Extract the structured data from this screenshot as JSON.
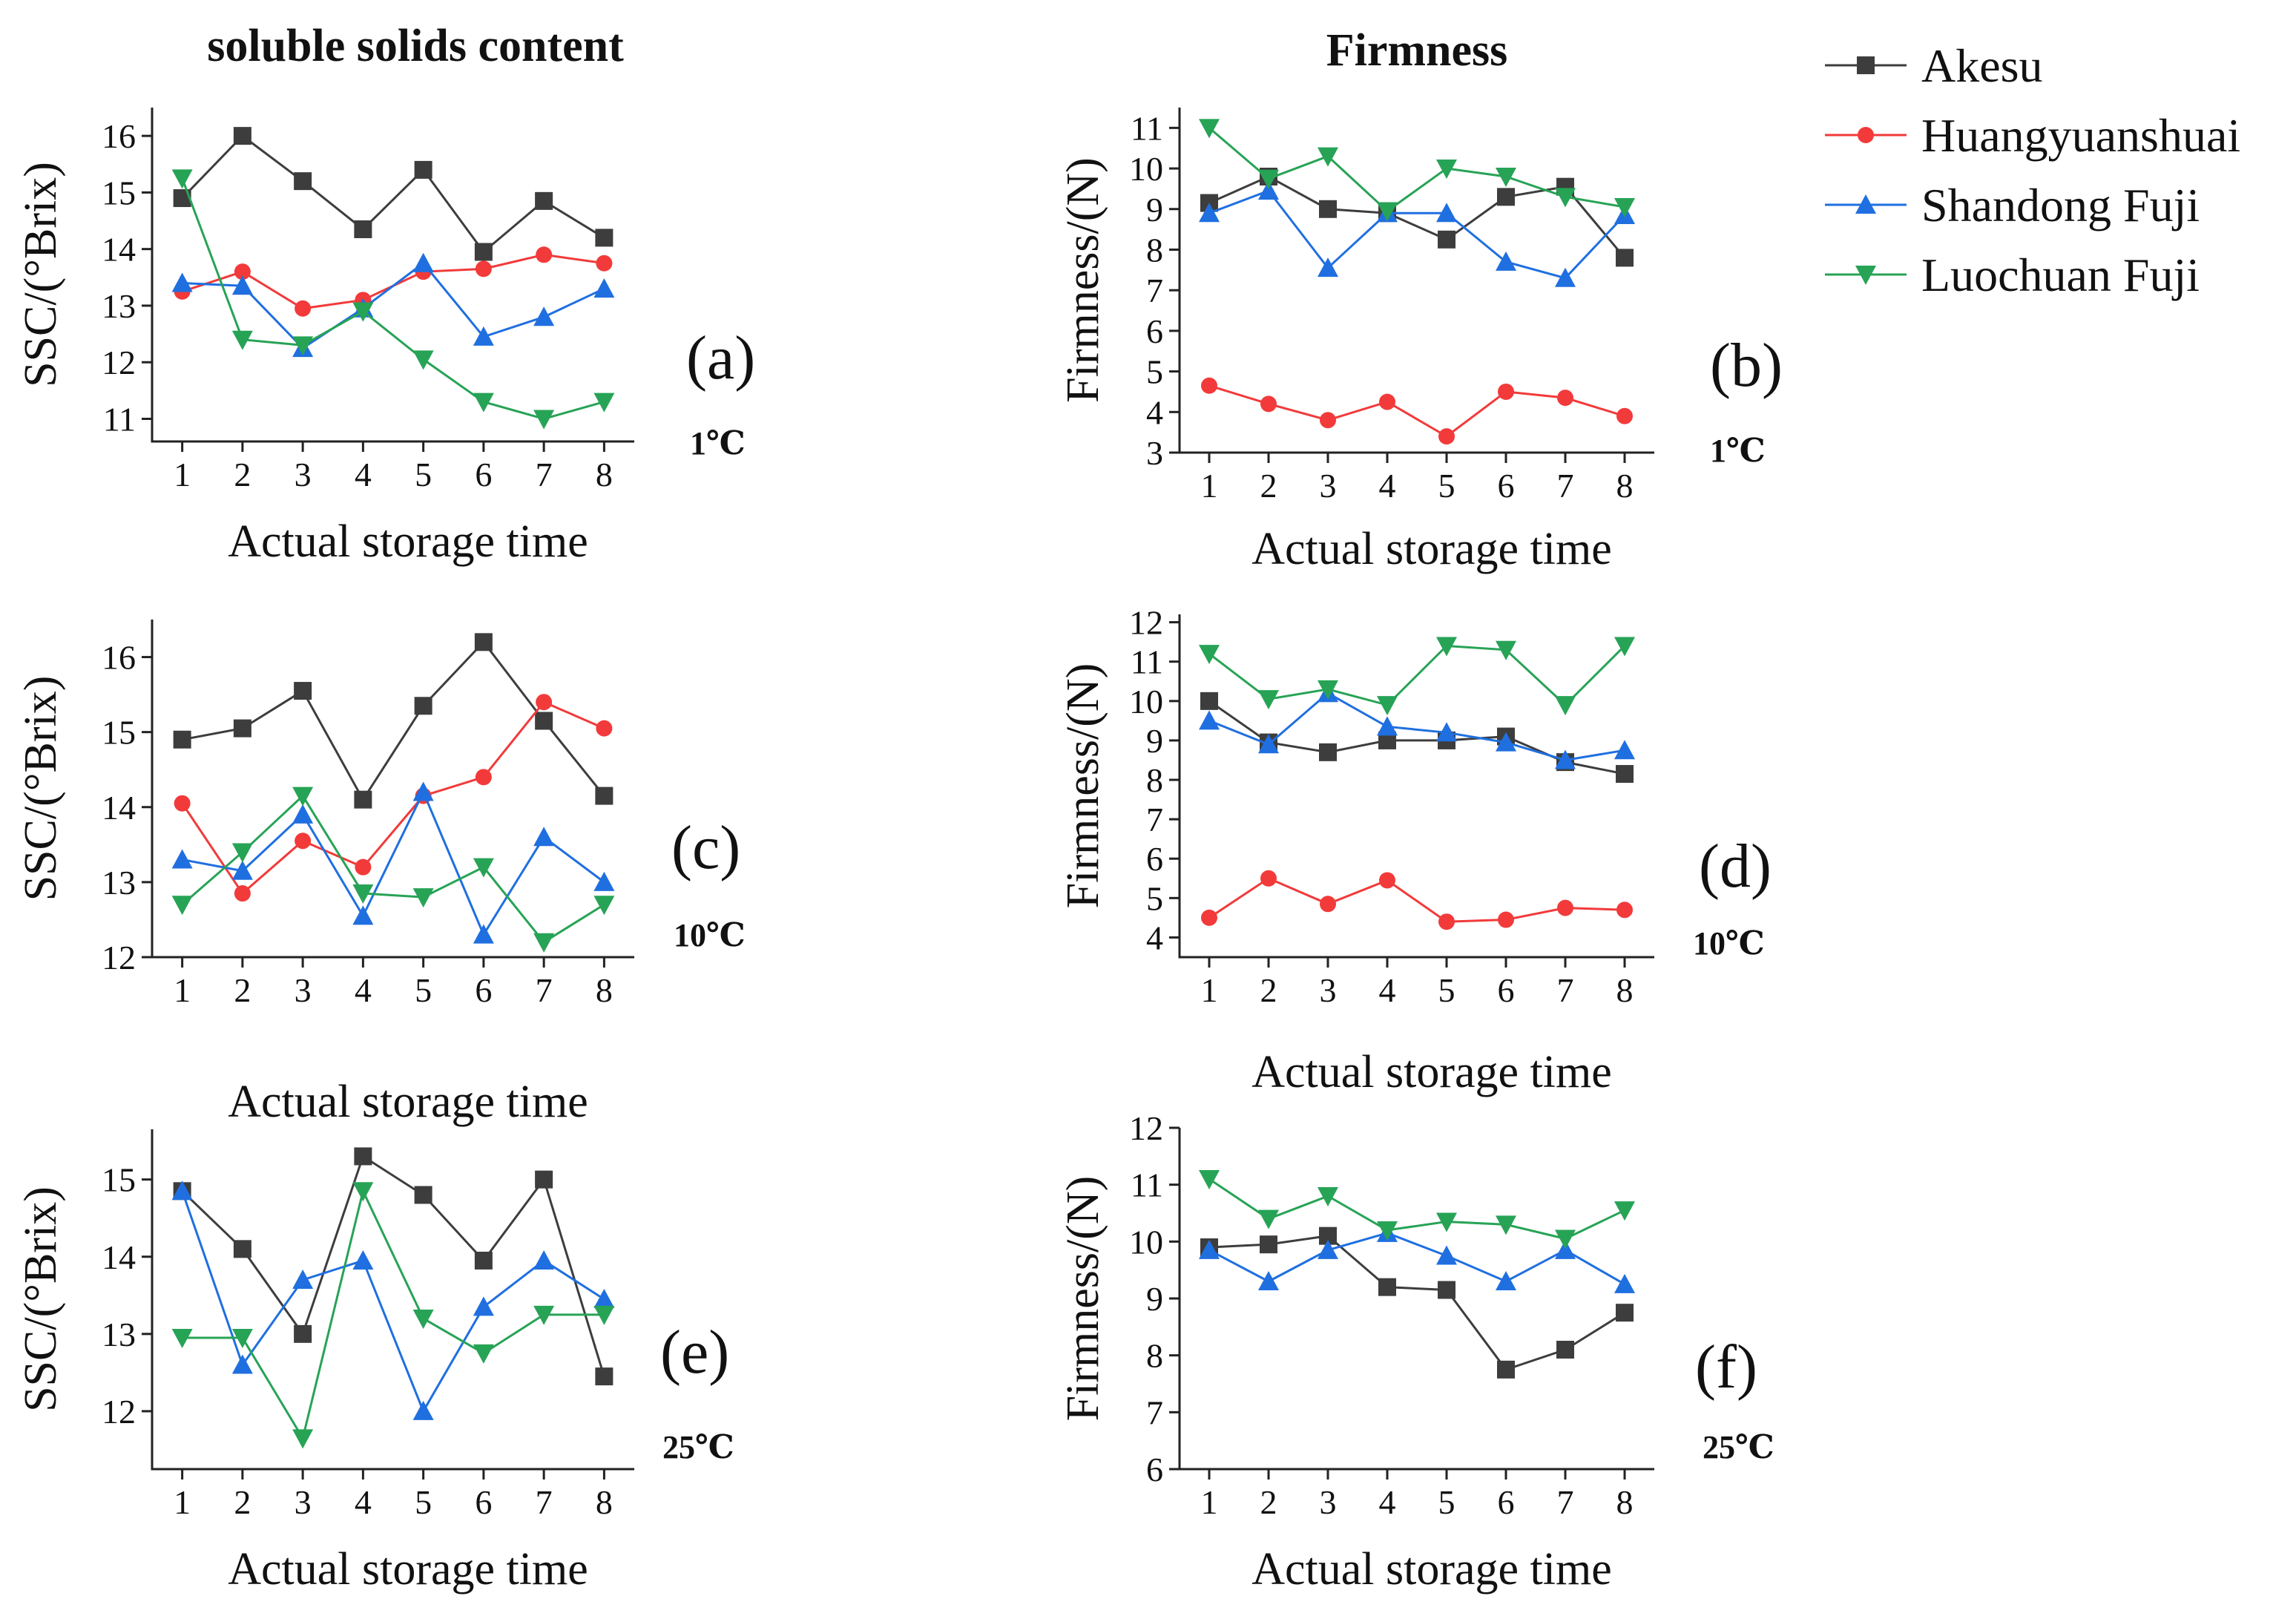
{
  "column_titles": {
    "ssc": "soluble solids content",
    "firmness": "Firmness"
  },
  "colors": {
    "Akesu": "#3d3d3d",
    "Huangyuanshuai": "#f23a3a",
    "Shandong Fuji": "#1f6fe0",
    "Luochuan Fuji": "#27a356"
  },
  "legend": [
    {
      "name": "Akesu",
      "marker": "square"
    },
    {
      "name": "Huangyuanshuai",
      "marker": "circle"
    },
    {
      "name": "Shandong Fuji",
      "marker": "triangle-up"
    },
    {
      "name": "Luochuan Fuji",
      "marker": "triangle-down"
    }
  ],
  "chart_data": [
    {
      "id": "a",
      "type": "line",
      "panel_label": "(a)",
      "temperature": "1℃",
      "ylabel": "SSC/(°Brix)",
      "xlabel": "Actual storage time",
      "x": [
        1,
        2,
        3,
        4,
        5,
        6,
        7,
        8
      ],
      "ylim": [
        10.6,
        16.5
      ],
      "yticks": [
        11,
        12,
        13,
        14,
        15,
        16
      ],
      "series": [
        {
          "name": "Akesu",
          "values": [
            14.9,
            16.0,
            15.2,
            14.35,
            15.4,
            13.95,
            14.85,
            14.2
          ]
        },
        {
          "name": "Huangyuanshuai",
          "values": [
            13.25,
            13.6,
            12.95,
            13.1,
            13.6,
            13.65,
            13.9,
            13.75
          ]
        },
        {
          "name": "Shandong Fuji",
          "values": [
            13.4,
            13.35,
            12.25,
            12.95,
            13.75,
            12.45,
            12.8,
            13.3
          ]
        },
        {
          "name": "Luochuan Fuji",
          "values": [
            15.25,
            12.4,
            12.3,
            12.9,
            12.05,
            11.3,
            11.0,
            11.3
          ]
        }
      ]
    },
    {
      "id": "b",
      "type": "line",
      "panel_label": "(b)",
      "temperature": "1℃",
      "ylabel": "Firmness/(N)",
      "xlabel": "Actual storage time",
      "x": [
        1,
        2,
        3,
        4,
        5,
        6,
        7,
        8
      ],
      "ylim": [
        3,
        11.5
      ],
      "yticks": [
        3,
        4,
        5,
        6,
        7,
        8,
        9,
        10,
        11
      ],
      "series": [
        {
          "name": "Akesu",
          "values": [
            9.15,
            9.8,
            9.0,
            8.9,
            8.25,
            9.3,
            9.55,
            7.8
          ]
        },
        {
          "name": "Huangyuanshuai",
          "values": [
            4.65,
            4.2,
            3.8,
            4.25,
            3.4,
            4.5,
            4.35,
            3.9
          ]
        },
        {
          "name": "Shandong Fuji",
          "values": [
            8.9,
            9.45,
            7.55,
            8.9,
            8.9,
            7.7,
            7.3,
            8.85
          ]
        },
        {
          "name": "Luochuan Fuji",
          "values": [
            11.0,
            9.75,
            10.3,
            8.95,
            10.0,
            9.8,
            9.3,
            9.05
          ]
        }
      ]
    },
    {
      "id": "c",
      "type": "line",
      "panel_label": "(c)",
      "temperature": "10℃",
      "ylabel": "SSC/(°Brix)",
      "xlabel": "Actual storage time",
      "x": [
        1,
        2,
        3,
        4,
        5,
        6,
        7,
        8
      ],
      "ylim": [
        12,
        16.5
      ],
      "yticks": [
        12,
        13,
        14,
        15,
        16
      ],
      "series": [
        {
          "name": "Akesu",
          "values": [
            14.9,
            15.05,
            15.55,
            14.1,
            15.35,
            16.2,
            15.15,
            14.15
          ]
        },
        {
          "name": "Huangyuanshuai",
          "values": [
            14.05,
            12.85,
            13.55,
            13.2,
            14.15,
            14.4,
            15.4,
            15.05
          ]
        },
        {
          "name": "Shandong Fuji",
          "values": [
            13.3,
            13.15,
            13.9,
            12.55,
            14.2,
            12.3,
            13.6,
            13.0
          ]
        },
        {
          "name": "Luochuan Fuji",
          "values": [
            12.7,
            13.4,
            14.15,
            12.85,
            12.8,
            13.2,
            12.2,
            12.7
          ]
        }
      ]
    },
    {
      "id": "d",
      "type": "line",
      "panel_label": "(d)",
      "temperature": "10℃",
      "ylabel": "Firmness/(N)",
      "xlabel": "Actual storage time",
      "x": [
        1,
        2,
        3,
        4,
        5,
        6,
        7,
        8
      ],
      "ylim": [
        3.5,
        12.2
      ],
      "yticks": [
        4,
        5,
        6,
        7,
        8,
        9,
        10,
        11,
        12
      ],
      "series": [
        {
          "name": "Akesu",
          "values": [
            10.0,
            8.95,
            8.7,
            9.0,
            9.0,
            9.1,
            8.45,
            8.15
          ]
        },
        {
          "name": "Huangyuanshuai",
          "values": [
            4.5,
            5.5,
            4.85,
            5.45,
            4.4,
            4.45,
            4.75,
            4.7
          ]
        },
        {
          "name": "Shandong Fuji",
          "values": [
            9.5,
            8.9,
            10.2,
            9.35,
            9.2,
            8.95,
            8.5,
            8.75
          ]
        },
        {
          "name": "Luochuan Fuji",
          "values": [
            11.2,
            10.05,
            10.3,
            9.9,
            11.4,
            11.3,
            9.9,
            11.4
          ]
        }
      ]
    },
    {
      "id": "e",
      "type": "line",
      "panel_label": "(e)",
      "temperature": "25℃",
      "ylabel": "SSC/(°Brix)",
      "xlabel": "Actual storage time",
      "x": [
        1,
        2,
        3,
        4,
        5,
        6,
        7,
        8
      ],
      "ylim": [
        11.25,
        15.65
      ],
      "yticks": [
        12,
        13,
        14,
        15
      ],
      "series": [
        {
          "name": "Akesu",
          "values": [
            14.85,
            14.1,
            13.0,
            15.3,
            14.8,
            13.95,
            15.0,
            12.45
          ]
        },
        {
          "name": "Shandong Fuji",
          "values": [
            14.85,
            12.6,
            13.7,
            13.95,
            12.0,
            13.35,
            13.95,
            13.45
          ]
        },
        {
          "name": "Luochuan Fuji",
          "values": [
            12.95,
            12.95,
            11.65,
            14.85,
            13.2,
            12.75,
            13.25,
            13.25
          ]
        }
      ]
    },
    {
      "id": "f",
      "type": "line",
      "panel_label": "(f)",
      "temperature": "25℃",
      "ylabel": "Firmness/(N)",
      "xlabel": "Actual storage time",
      "x": [
        1,
        2,
        3,
        4,
        5,
        6,
        7,
        8
      ],
      "ylim": [
        6,
        12
      ],
      "yticks": [
        6,
        7,
        8,
        9,
        10,
        11,
        12
      ],
      "series": [
        {
          "name": "Akesu",
          "values": [
            9.9,
            9.95,
            10.1,
            9.2,
            9.15,
            7.75,
            8.1,
            8.75
          ]
        },
        {
          "name": "Shandong Fuji",
          "values": [
            9.85,
            9.3,
            9.85,
            10.15,
            9.75,
            9.3,
            9.85,
            9.25
          ]
        },
        {
          "name": "Luochuan Fuji",
          "values": [
            11.1,
            10.4,
            10.8,
            10.2,
            10.35,
            10.3,
            10.05,
            10.55
          ]
        }
      ]
    }
  ]
}
